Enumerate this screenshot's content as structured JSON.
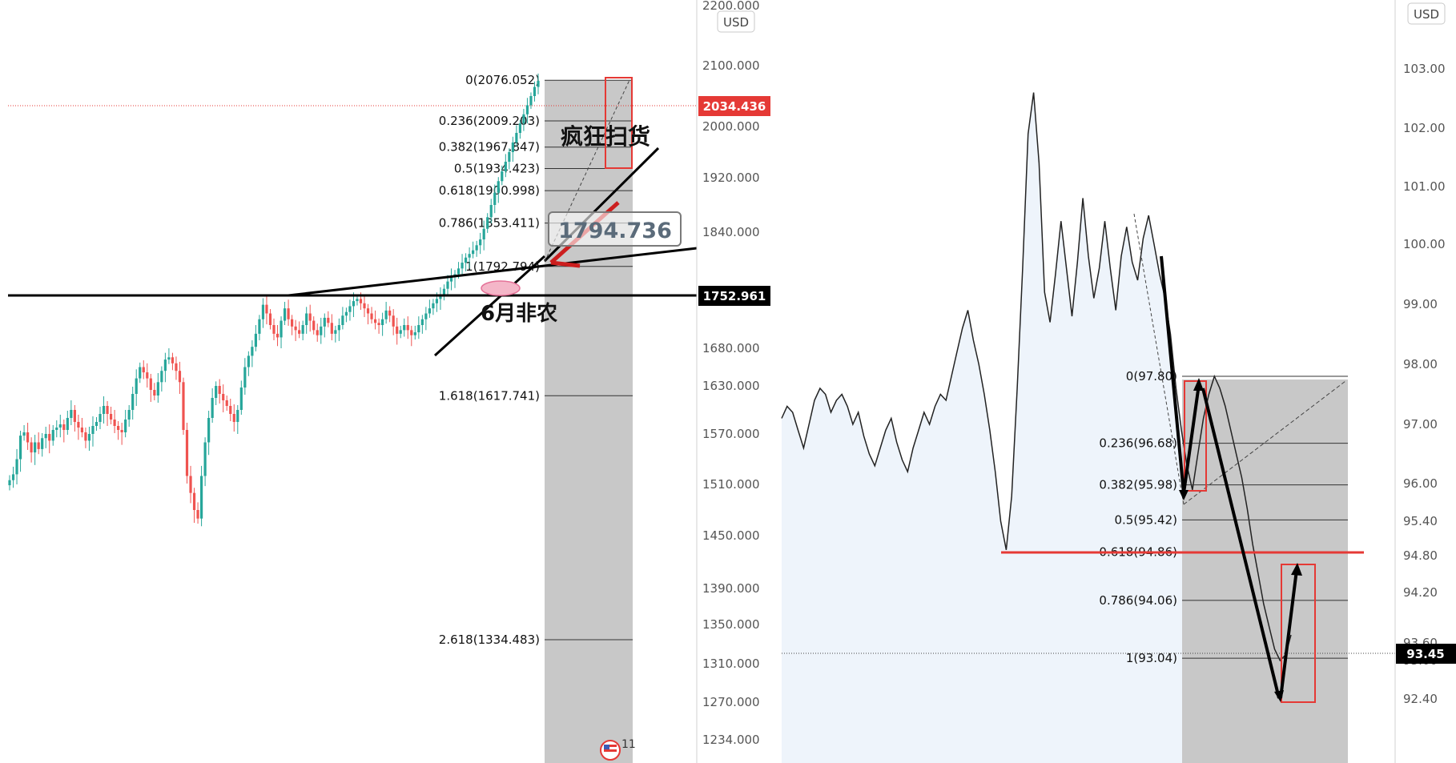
{
  "chart_data": [
    {
      "type": "candlestick",
      "title": "",
      "currency_label": "USD",
      "y_ticks": [
        "2100.000",
        "2000.000",
        "1920.000",
        "1840.000",
        "1680.000",
        "1630.000",
        "1570.000",
        "1510.000",
        "1450.000",
        "1390.000",
        "1350.000",
        "1310.000",
        "1270.000",
        "1234.000"
      ],
      "top_partial_tick": "2200.000",
      "current_price_label": "2034.436",
      "level_label": "1752.961",
      "fib_levels": [
        {
          "ratio_label": "0(2076.052)",
          "price": 2076.052
        },
        {
          "ratio_label": "0.236(2009.203)",
          "price": 2009.203
        },
        {
          "ratio_label": "0.382(1967.847)",
          "price": 1967.847
        },
        {
          "ratio_label": "0.5(1934.423)",
          "price": 1934.423
        },
        {
          "ratio_label": "0.618(1900.998)",
          "price": 1900.998
        },
        {
          "ratio_label": "0.786(1853.411)",
          "price": 1853.411
        },
        {
          "ratio_label": "1(1792.794)",
          "price": 1792.794
        },
        {
          "ratio_label": "1.618(1617.741)",
          "price": 1617.741
        },
        {
          "ratio_label": "2.618(1334.483)",
          "price": 1334.483
        }
      ],
      "annotations": {
        "frenzy": "疯狂扫货",
        "nfp": "6月非农",
        "price_box": "1794.736",
        "event_badge_number": "11"
      },
      "colors": {
        "up": "#26a69a",
        "down": "#ef5350",
        "annotation_red": "#e53935",
        "fib_zone": "#c8c8c8"
      },
      "close_series": [
        1515,
        1522,
        1540,
        1568,
        1572,
        1560,
        1548,
        1560,
        1552,
        1565,
        1570,
        1562,
        1575,
        1578,
        1582,
        1575,
        1590,
        1600,
        1585,
        1578,
        1572,
        1562,
        1570,
        1580,
        1585,
        1595,
        1605,
        1595,
        1588,
        1580,
        1575,
        1572,
        1588,
        1600,
        1620,
        1640,
        1655,
        1648,
        1640,
        1625,
        1618,
        1635,
        1650,
        1665,
        1668,
        1660,
        1650,
        1635,
        1575,
        1520,
        1500,
        1480,
        1470,
        1520,
        1560,
        1590,
        1615,
        1630,
        1620,
        1612,
        1605,
        1595,
        1585,
        1600,
        1628,
        1655,
        1670,
        1682,
        1700,
        1720,
        1740,
        1728,
        1712,
        1700,
        1695,
        1718,
        1735,
        1720,
        1710,
        1705,
        1700,
        1712,
        1728,
        1718,
        1705,
        1698,
        1710,
        1722,
        1715,
        1700,
        1705,
        1712,
        1725,
        1730,
        1738,
        1745,
        1748,
        1742,
        1735,
        1728,
        1720,
        1715,
        1712,
        1720,
        1732,
        1725,
        1710,
        1700,
        1705,
        1712,
        1705,
        1698,
        1702,
        1712,
        1720,
        1728,
        1735,
        1742,
        1748,
        1752,
        1762,
        1772,
        1778,
        1782,
        1790,
        1798,
        1805,
        1810,
        1815,
        1822,
        1830,
        1845,
        1862,
        1880,
        1898,
        1915,
        1930,
        1945,
        1960,
        1975,
        1990,
        2005,
        2020,
        2035,
        2050,
        2065,
        2075
      ]
    },
    {
      "type": "area",
      "title": "",
      "currency_label": "USD",
      "y_ticks": [
        "103.00",
        "102.00",
        "101.00",
        "100.00",
        "99.00",
        "98.00",
        "97.00",
        "96.00",
        "95.40",
        "94.80",
        "94.20",
        "93.00",
        "92.40"
      ],
      "partial_tick": "93.60",
      "current_price_label": "93.45",
      "fib_levels": [
        {
          "ratio_label": "0(97.80)",
          "price": 97.8
        },
        {
          "ratio_label": "0.236(96.68)",
          "price": 96.68
        },
        {
          "ratio_label": "0.382(95.98)",
          "price": 95.98
        },
        {
          "ratio_label": "0.5(95.42)",
          "price": 95.42
        },
        {
          "ratio_label": "0.618(94.86)",
          "price": 94.86
        },
        {
          "ratio_label": "0.786(94.06)",
          "price": 94.06
        },
        {
          "ratio_label": "1(93.04)",
          "price": 93.04
        }
      ],
      "resistance_level": 95.0,
      "colors": {
        "line": "#222222",
        "area": "#eef4fb",
        "annotation_red": "#e53935",
        "fib_zone": "#c8c8c8"
      },
      "close_series": [
        97.1,
        97.3,
        97.2,
        96.9,
        96.6,
        97.0,
        97.4,
        97.6,
        97.5,
        97.2,
        97.4,
        97.5,
        97.3,
        97.0,
        97.2,
        96.8,
        96.5,
        96.3,
        96.6,
        96.9,
        97.1,
        96.7,
        96.4,
        96.2,
        96.6,
        96.9,
        97.2,
        97.0,
        97.3,
        97.5,
        97.4,
        97.8,
        98.2,
        98.6,
        98.9,
        98.4,
        98.0,
        97.5,
        96.9,
        96.2,
        95.4,
        94.9,
        95.8,
        97.6,
        99.6,
        101.9,
        102.6,
        101.4,
        99.2,
        98.7,
        99.5,
        100.4,
        99.6,
        98.8,
        99.7,
        100.8,
        99.8,
        99.1,
        99.6,
        100.4,
        99.6,
        98.9,
        99.8,
        100.3,
        99.7,
        99.4,
        100.1,
        100.5,
        100.0,
        99.5,
        99.1,
        98.5,
        97.6,
        96.9,
        96.3,
        95.9,
        96.5,
        97.1,
        97.5,
        97.8,
        97.6,
        97.3,
        96.9,
        96.5,
        96.1,
        95.6,
        95.0,
        94.5,
        94.0,
        93.6,
        93.2,
        93.0,
        93.1,
        93.45
      ]
    }
  ]
}
